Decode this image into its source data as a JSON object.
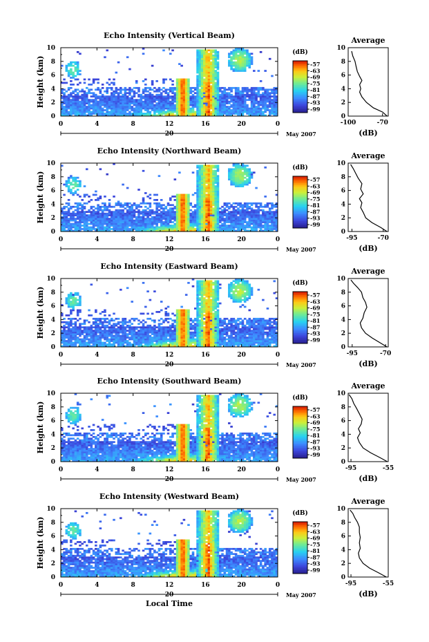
{
  "figure": {
    "xlabel": "Local Time"
  },
  "chart_data": [
    {
      "type": "heatmap",
      "title": "Echo Intensity (Vertical Beam)",
      "ylabel": "Height (km)",
      "x_ticks": [
        "0",
        "4",
        "8",
        "12",
        "16",
        "20",
        "0"
      ],
      "xlim": [
        0,
        24
      ],
      "y_ticks": [
        "0",
        "2",
        "4",
        "6",
        "8",
        "10"
      ],
      "ylim": [
        0,
        10
      ],
      "date_label": "20",
      "month_label": "May 2007",
      "colorbar": {
        "unit": "(dB)",
        "ticks": [
          "-57",
          "-63",
          "-69",
          "-75",
          "-81",
          "-87",
          "-93",
          "-99"
        ],
        "range": [
          -99,
          -57
        ]
      },
      "profile": {
        "title": "Average",
        "xlabel": "(dB)",
        "x_ticks": [
          "-100",
          "-70"
        ],
        "xlim": [
          -100,
          -65
        ],
        "y_ticks": [
          "0",
          "2",
          "4",
          "6",
          "8",
          "10"
        ],
        "points": [
          [
            -66,
            0
          ],
          [
            -70,
            0.6
          ],
          [
            -78,
            1.2
          ],
          [
            -84,
            2
          ],
          [
            -88,
            2.8
          ],
          [
            -90,
            3.5
          ],
          [
            -89,
            4
          ],
          [
            -90,
            4.6
          ],
          [
            -88,
            5.2
          ],
          [
            -90,
            5.8
          ],
          [
            -92,
            6.5
          ],
          [
            -93,
            7.2
          ],
          [
            -94,
            8
          ],
          [
            -96,
            8.8
          ],
          [
            -97,
            9.5
          ]
        ]
      }
    },
    {
      "type": "heatmap",
      "title": "Echo Intensity (Northward Beam)",
      "ylabel": "Height (km)",
      "x_ticks": [
        "0",
        "4",
        "8",
        "12",
        "16",
        "20",
        "0"
      ],
      "xlim": [
        0,
        24
      ],
      "y_ticks": [
        "0",
        "2",
        "4",
        "6",
        "8",
        "10"
      ],
      "ylim": [
        0,
        10
      ],
      "date_label": "20",
      "month_label": "May 2007",
      "colorbar": {
        "unit": "(dB)",
        "ticks": [
          "-57",
          "-63",
          "-69",
          "-75",
          "-81",
          "-87",
          "-93",
          "-99"
        ],
        "range": [
          -99,
          -57
        ]
      },
      "profile": {
        "title": "Average",
        "xlabel": "(dB)",
        "x_ticks": [
          "-95",
          "-70"
        ],
        "xlim": [
          -98,
          -66
        ],
        "y_ticks": [
          "0",
          "2",
          "4",
          "6",
          "8",
          "10"
        ],
        "points": [
          [
            -67,
            0
          ],
          [
            -72,
            0.6
          ],
          [
            -79,
            1.3
          ],
          [
            -84,
            2
          ],
          [
            -86,
            2.8
          ],
          [
            -88,
            3.5
          ],
          [
            -87,
            4.2
          ],
          [
            -89,
            4.8
          ],
          [
            -86,
            5.5
          ],
          [
            -88,
            6.2
          ],
          [
            -87,
            7
          ],
          [
            -90,
            7.8
          ],
          [
            -92,
            8.5
          ],
          [
            -94,
            9.2
          ],
          [
            -96,
            9.8
          ]
        ]
      }
    },
    {
      "type": "heatmap",
      "title": "Echo Intensity (Eastward Beam)",
      "ylabel": "Height (km)",
      "x_ticks": [
        "0",
        "4",
        "8",
        "12",
        "16",
        "20",
        "0"
      ],
      "xlim": [
        0,
        24
      ],
      "y_ticks": [
        "0",
        "2",
        "4",
        "6",
        "8",
        "10"
      ],
      "ylim": [
        0,
        10
      ],
      "date_label": "20",
      "month_label": "May 2007",
      "colorbar": {
        "unit": "(dB)",
        "ticks": [
          "-57",
          "-63",
          "-69",
          "-75",
          "-81",
          "-87",
          "-93",
          "-99"
        ],
        "range": [
          -99,
          -57
        ]
      },
      "profile": {
        "title": "Average",
        "xlabel": "(dB)",
        "x_ticks": [
          "-95",
          "-70"
        ],
        "xlim": [
          -98,
          -68
        ],
        "y_ticks": [
          "0",
          "2",
          "4",
          "6",
          "8",
          "10"
        ],
        "points": [
          [
            -69,
            0
          ],
          [
            -74,
            0.6
          ],
          [
            -80,
            1.3
          ],
          [
            -85,
            2
          ],
          [
            -88,
            2.8
          ],
          [
            -89,
            3.5
          ],
          [
            -87,
            4.2
          ],
          [
            -86,
            5
          ],
          [
            -84,
            5.8
          ],
          [
            -85,
            6.5
          ],
          [
            -87,
            7.2
          ],
          [
            -88,
            8
          ],
          [
            -91,
            8.7
          ],
          [
            -94,
            9.3
          ],
          [
            -96,
            9.8
          ]
        ]
      }
    },
    {
      "type": "heatmap",
      "title": "Echo Intensity (Southward Beam)",
      "ylabel": "Height (km)",
      "x_ticks": [
        "0",
        "4",
        "8",
        "12",
        "16",
        "20",
        "0"
      ],
      "xlim": [
        0,
        24
      ],
      "y_ticks": [
        "0",
        "2",
        "4",
        "6",
        "8",
        "10"
      ],
      "ylim": [
        0,
        10
      ],
      "date_label": "20",
      "month_label": "May 2007",
      "colorbar": {
        "unit": "(dB)",
        "ticks": [
          "-57",
          "-63",
          "-69",
          "-75",
          "-81",
          "-87",
          "-93",
          "-99"
        ],
        "range": [
          -99,
          -57
        ]
      },
      "profile": {
        "title": "Average",
        "xlabel": "(dB)",
        "x_ticks": [
          "-95",
          "-55"
        ],
        "xlim": [
          -98,
          -55
        ],
        "y_ticks": [
          "0",
          "2",
          "4",
          "6",
          "8",
          "10"
        ],
        "points": [
          [
            -56,
            0
          ],
          [
            -64,
            0.6
          ],
          [
            -74,
            1.3
          ],
          [
            -82,
            2
          ],
          [
            -86,
            2.8
          ],
          [
            -88,
            3.5
          ],
          [
            -85,
            4.2
          ],
          [
            -87,
            4.8
          ],
          [
            -84,
            5.5
          ],
          [
            -83,
            6.2
          ],
          [
            -86,
            7
          ],
          [
            -89,
            7.8
          ],
          [
            -92,
            8.5
          ],
          [
            -94,
            9.2
          ],
          [
            -97,
            9.8
          ]
        ]
      }
    },
    {
      "type": "heatmap",
      "title": "Echo Intensity (Westward Beam)",
      "ylabel": "Height (km)",
      "x_ticks": [
        "0",
        "4",
        "8",
        "12",
        "16",
        "20",
        "0"
      ],
      "xlim": [
        0,
        24
      ],
      "y_ticks": [
        "0",
        "2",
        "4",
        "6",
        "8",
        "10"
      ],
      "ylim": [
        0,
        10
      ],
      "date_label": "20",
      "month_label": "May 2007",
      "colorbar": {
        "unit": "(dB)",
        "ticks": [
          "-57",
          "-63",
          "-69",
          "-75",
          "-81",
          "-87",
          "-93",
          "-99"
        ],
        "range": [
          -99,
          -57
        ]
      },
      "profile": {
        "title": "Average",
        "xlabel": "(dB)",
        "x_ticks": [
          "-95",
          "-55"
        ],
        "xlim": [
          -98,
          -55
        ],
        "y_ticks": [
          "0",
          "2",
          "4",
          "6",
          "8",
          "10"
        ],
        "points": [
          [
            -57,
            0
          ],
          [
            -65,
            0.6
          ],
          [
            -75,
            1.3
          ],
          [
            -82,
            2
          ],
          [
            -86,
            2.8
          ],
          [
            -87,
            3.5
          ],
          [
            -85,
            4.2
          ],
          [
            -86,
            5
          ],
          [
            -85,
            5.8
          ],
          [
            -86,
            6.5
          ],
          [
            -86,
            7.3
          ],
          [
            -88,
            8
          ],
          [
            -91,
            8.7
          ],
          [
            -93,
            9.3
          ],
          [
            -96,
            9.8
          ]
        ]
      }
    }
  ]
}
